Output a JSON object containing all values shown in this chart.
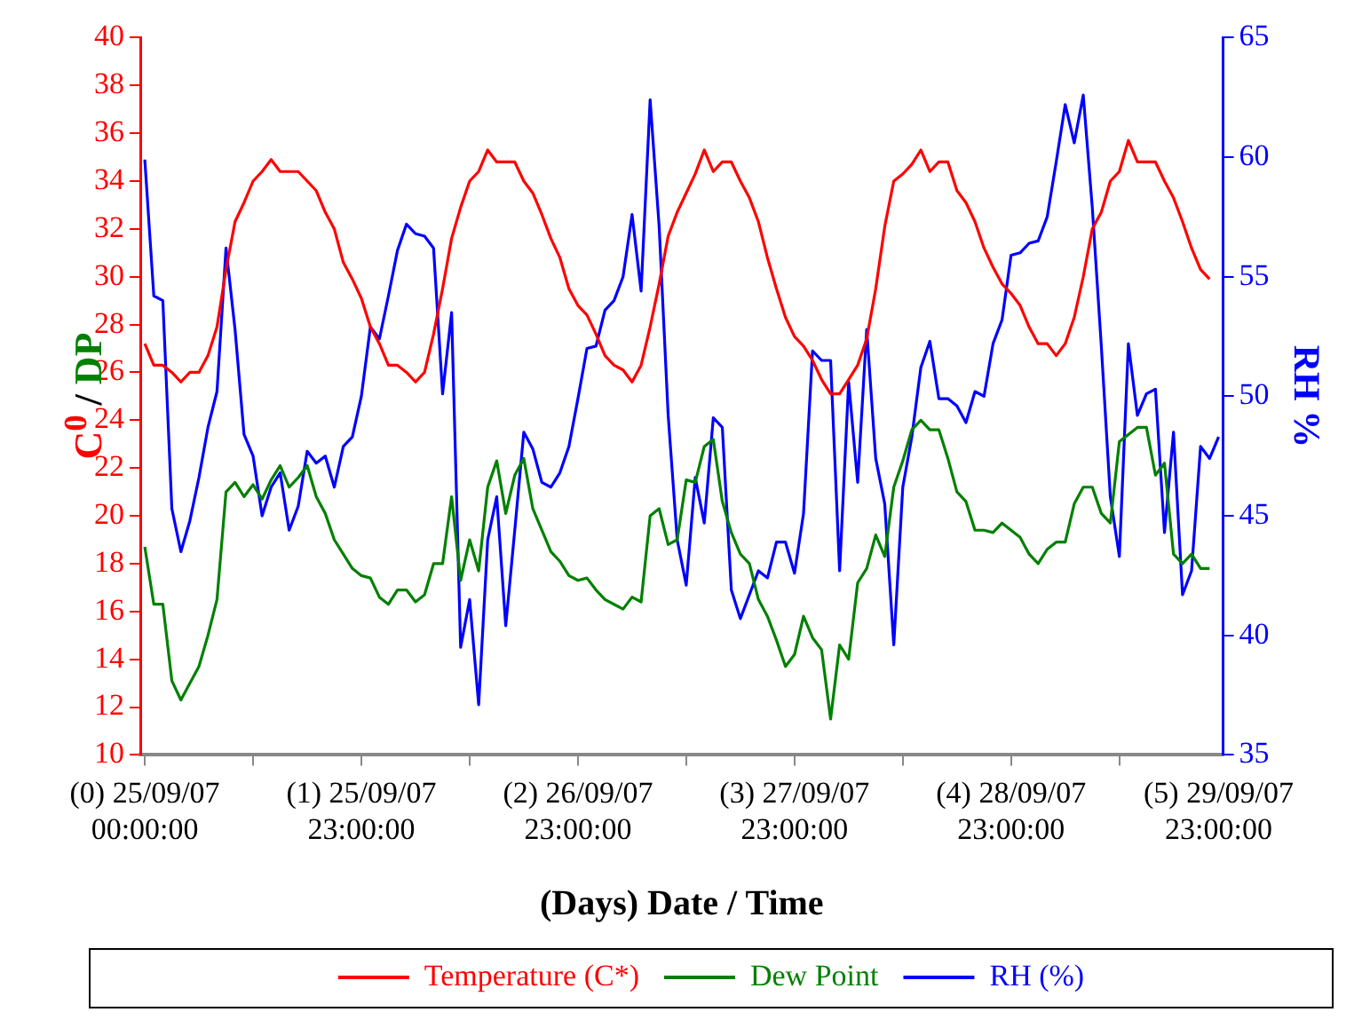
{
  "chart_data": {
    "type": "line",
    "xlabel": "(Days) Date / Time",
    "ylabel": "C$^{0}$ / DP",
    "y2label": "RH %",
    "categories": [
      "(0) 25/09/07\n00:00:00",
      null,
      null,
      null,
      null,
      null,
      null,
      null,
      null,
      null,
      null,
      null,
      null,
      null,
      null,
      null,
      null,
      null,
      null,
      null,
      null,
      null,
      null,
      null,
      "(1) 25/09/07\n23:00:00",
      null,
      null,
      null,
      null,
      null,
      null,
      null,
      null,
      null,
      null,
      null,
      null,
      null,
      null,
      null,
      null,
      null,
      null,
      null,
      null,
      null,
      null,
      null,
      "(2) 26/09/07\n23:00:00",
      null,
      null,
      null,
      null,
      null,
      null,
      null,
      null,
      null,
      null,
      null,
      null,
      null,
      null,
      null,
      null,
      null,
      null,
      null,
      null,
      null,
      null,
      null,
      "(3) 27/09/07\n23:00:00",
      null,
      null,
      null,
      null,
      null,
      null,
      null,
      null,
      null,
      null,
      null,
      null,
      null,
      null,
      null,
      null,
      null,
      null,
      null,
      null,
      null,
      null,
      null,
      "(4) 28/09/07\n23:00:00",
      null,
      null,
      null,
      null,
      null,
      null,
      null,
      null,
      null,
      null,
      null,
      null,
      null,
      null,
      null,
      null,
      null,
      null,
      null,
      null,
      null,
      null,
      "(5) 29/09/07\n23:00:00"
    ],
    "ylim": [
      10,
      40
    ],
    "yticks": [
      10,
      12,
      14,
      16,
      18,
      20,
      22,
      24,
      26,
      28,
      30,
      32,
      34,
      36,
      38,
      40
    ],
    "y2lim": [
      35,
      65
    ],
    "y2ticks": [
      35,
      40,
      45,
      50,
      55,
      60,
      65
    ],
    "grid": false,
    "legend": "bottom",
    "marker": "none",
    "line_style": "solid",
    "series": [
      {
        "name": "Temperature (C*)",
        "color": "#ff0000",
        "axis": "y",
        "values": [
          27.2,
          26.3,
          26.3,
          26.0,
          25.6,
          26.0,
          26.0,
          26.7,
          27.9,
          30.3,
          32.3,
          33.1,
          34.0,
          34.4,
          34.9,
          34.4,
          34.4,
          34.4,
          34.0,
          33.6,
          32.7,
          32.0,
          30.6,
          29.9,
          29.1,
          27.9,
          27.2,
          26.3,
          26.3,
          26.0,
          25.6,
          26.0,
          27.6,
          29.5,
          31.6,
          32.9,
          34.0,
          34.4,
          35.3,
          34.8,
          34.8,
          34.8,
          34.0,
          33.5,
          32.6,
          31.6,
          30.8,
          29.5,
          28.8,
          28.4,
          27.6,
          26.7,
          26.3,
          26.1,
          25.6,
          26.3,
          27.9,
          29.7,
          31.7,
          32.7,
          33.5,
          34.3,
          35.3,
          34.4,
          34.8,
          34.8,
          34.0,
          33.3,
          32.3,
          30.8,
          29.5,
          28.3,
          27.5,
          27.1,
          26.5,
          25.7,
          25.1,
          25.1,
          25.7,
          26.3,
          27.4,
          29.5,
          32.1,
          34.0,
          34.3,
          34.7,
          35.3,
          34.4,
          34.8,
          34.8,
          33.6,
          33.1,
          32.3,
          31.2,
          30.4,
          29.7,
          29.3,
          28.8,
          27.9,
          27.2,
          27.2,
          26.7,
          27.2,
          28.3,
          30.0,
          32.0,
          32.7,
          34.0,
          34.4,
          35.7,
          34.8,
          34.8,
          34.8,
          34.0,
          33.3,
          32.3,
          31.2,
          30.3,
          29.9,
          null
        ]
      },
      {
        "name": "Dew Point",
        "color": "#008000",
        "axis": "y",
        "values": [
          18.7,
          16.3,
          16.3,
          13.1,
          12.3,
          13.0,
          13.7,
          15.0,
          16.5,
          21.0,
          21.4,
          20.8,
          21.3,
          20.7,
          21.5,
          22.1,
          21.2,
          21.6,
          22.1,
          20.8,
          20.1,
          19.0,
          18.4,
          17.8,
          17.5,
          17.4,
          16.6,
          16.3,
          16.9,
          16.9,
          16.4,
          16.7,
          18.0,
          18.0,
          20.8,
          17.3,
          19.0,
          17.7,
          21.2,
          22.3,
          20.1,
          21.7,
          22.4,
          20.3,
          19.4,
          18.5,
          18.1,
          17.5,
          17.3,
          17.4,
          16.9,
          16.5,
          16.3,
          16.1,
          16.6,
          16.4,
          20.0,
          20.3,
          18.8,
          19.0,
          21.5,
          21.4,
          22.9,
          23.2,
          20.6,
          19.3,
          18.4,
          18.0,
          16.5,
          15.8,
          14.8,
          13.7,
          14.2,
          15.8,
          14.9,
          14.4,
          11.5,
          14.6,
          14.0,
          17.2,
          17.8,
          19.2,
          18.3,
          21.2,
          22.3,
          23.6,
          24.0,
          23.6,
          23.6,
          22.4,
          21.0,
          20.6,
          19.4,
          19.4,
          19.3,
          19.7,
          19.4,
          19.1,
          18.4,
          18.0,
          18.6,
          18.9,
          18.9,
          20.5,
          21.2,
          21.2,
          20.1,
          19.7,
          23.1,
          23.4,
          23.7,
          23.7,
          21.7,
          22.2,
          18.4,
          18.0,
          18.4,
          17.8,
          17.8,
          null
        ]
      },
      {
        "name": "RH (%)",
        "color": "#0000ff",
        "axis": "y2",
        "values": [
          59.9,
          54.2,
          54.0,
          45.3,
          43.5,
          44.8,
          46.6,
          48.7,
          50.2,
          56.2,
          52.8,
          48.4,
          47.5,
          45.0,
          46.2,
          46.8,
          44.4,
          45.4,
          47.7,
          47.2,
          47.5,
          46.2,
          47.9,
          48.3,
          50.0,
          52.9,
          52.4,
          54.2,
          56.1,
          57.2,
          56.8,
          56.7,
          56.2,
          50.1,
          53.5,
          39.5,
          41.5,
          37.1,
          44.0,
          45.8,
          40.4,
          44.4,
          48.5,
          47.8,
          46.4,
          46.2,
          46.8,
          47.9,
          49.9,
          52.0,
          52.1,
          53.6,
          54.0,
          55.0,
          57.6,
          54.4,
          62.4,
          57.1,
          49.2,
          44.0,
          42.1,
          46.6,
          44.7,
          49.1,
          48.7,
          41.9,
          40.7,
          41.7,
          42.7,
          42.4,
          43.9,
          43.9,
          42.6,
          45.1,
          51.9,
          51.5,
          51.5,
          42.7,
          50.6,
          46.4,
          52.8,
          47.4,
          45.5,
          39.6,
          46.2,
          48.3,
          51.2,
          52.3,
          49.9,
          49.9,
          49.6,
          48.9,
          50.2,
          50.0,
          52.2,
          53.2,
          55.9,
          56.0,
          56.4,
          56.5,
          57.5,
          59.8,
          62.2,
          60.6,
          62.6,
          57.9,
          52.1,
          45.8,
          43.3,
          52.2,
          49.2,
          50.1,
          50.3,
          44.3,
          48.5,
          41.7,
          42.7,
          47.9,
          47.4,
          48.3
        ]
      }
    ]
  }
}
